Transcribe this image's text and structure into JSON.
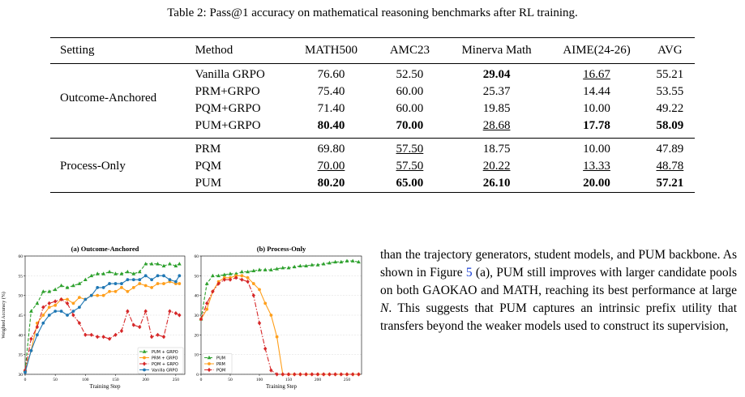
{
  "caption": "Table 2: Pass@1 accuracy on mathematical reasoning benchmarks after RL training.",
  "table": {
    "headers": [
      "Setting",
      "Method",
      "MATH500",
      "AMC23",
      "Minerva Math",
      "AIME(24-26)",
      "AVG"
    ],
    "rows": [
      {
        "setting": "",
        "method": "Vanilla GRPO",
        "math500": "76.60",
        "amc23": "52.50",
        "minerva": "29.04",
        "aime": "16.67",
        "avg": "55.21"
      },
      {
        "setting": "Outcome-Anchored",
        "method": "PRM+GRPO",
        "math500": "75.40",
        "amc23": "60.00",
        "minerva": "25.37",
        "aime": "14.44",
        "avg": "53.55"
      },
      {
        "setting": "",
        "method": "PQM+GRPO",
        "math500": "71.40",
        "amc23": "60.00",
        "minerva": "19.85",
        "aime": "10.00",
        "avg": "49.22"
      },
      {
        "setting": "",
        "method": "PUM+GRPO",
        "math500": "80.40",
        "amc23": "70.00",
        "minerva": "28.68",
        "aime": "17.78",
        "avg": "58.09"
      },
      {
        "setting": "",
        "method": "PRM",
        "math500": "69.80",
        "amc23": "57.50",
        "minerva": "18.75",
        "aime": "10.00",
        "avg": "47.89"
      },
      {
        "setting": "Process-Only",
        "method": "PQM",
        "math500": "70.00",
        "amc23": "57.50",
        "minerva": "20.22",
        "aime": "13.33",
        "avg": "48.78"
      },
      {
        "setting": "",
        "method": "PUM",
        "math500": "80.20",
        "amc23": "65.00",
        "minerva": "26.10",
        "aime": "20.00",
        "avg": "57.21"
      }
    ]
  },
  "chart_data": [
    {
      "type": "line",
      "title": "(a) Outcome-Anchored",
      "xlabel": "Training Step",
      "ylabel": "Weighted Accuracy (%)",
      "xlim": [
        0,
        265
      ],
      "ylim": [
        30,
        60
      ],
      "xticks": [
        0,
        50,
        100,
        150,
        200,
        250
      ],
      "yticks": [
        30,
        35,
        40,
        45,
        50,
        55,
        60
      ],
      "grid": true,
      "legend_position": "bottom-right",
      "series": [
        {
          "name": "PUM + GRPO",
          "color": "#2ca02c",
          "dash": "4,2",
          "marker": "triangle",
          "x": [
            0,
            10,
            20,
            30,
            40,
            50,
            60,
            70,
            80,
            90,
            100,
            110,
            120,
            130,
            140,
            150,
            160,
            170,
            180,
            190,
            200,
            210,
            220,
            230,
            240,
            250,
            256
          ],
          "y": [
            31,
            46,
            48,
            51,
            51,
            51.5,
            52.5,
            52,
            52.5,
            53,
            54,
            55,
            55.5,
            55.5,
            56,
            55.5,
            55.5,
            56,
            55.5,
            56,
            58,
            58,
            58,
            57.5,
            58,
            57.5,
            58
          ]
        },
        {
          "name": "PRM + GRPO",
          "color": "#ff9f1c",
          "dash": "",
          "marker": "circle",
          "x": [
            0,
            10,
            20,
            30,
            40,
            50,
            60,
            70,
            80,
            90,
            100,
            110,
            120,
            130,
            140,
            150,
            160,
            170,
            180,
            190,
            200,
            210,
            220,
            230,
            240,
            250,
            256
          ],
          "y": [
            31,
            36,
            43,
            45,
            47,
            47.5,
            49,
            49,
            48,
            49.5,
            49,
            50,
            50,
            50,
            51,
            51,
            52,
            51,
            52,
            53,
            52.5,
            52,
            53,
            53,
            53.5,
            53,
            53
          ]
        },
        {
          "name": "PQM + GRPO",
          "color": "#d62728",
          "dash": "6,2,1.5,2",
          "marker": "diamond",
          "x": [
            0,
            10,
            20,
            30,
            40,
            50,
            60,
            70,
            80,
            90,
            100,
            110,
            120,
            130,
            140,
            150,
            160,
            170,
            180,
            190,
            200,
            210,
            220,
            230,
            240,
            250,
            256
          ],
          "y": [
            31,
            39,
            42,
            47,
            48,
            48.5,
            49,
            48,
            45,
            43,
            40,
            40,
            39.5,
            39.5,
            39,
            40,
            41,
            46,
            42.5,
            42,
            46,
            39.5,
            40,
            39.5,
            46,
            45.5,
            45
          ]
        },
        {
          "name": "Vanilla GRPO",
          "color": "#1f77b4",
          "dash": "",
          "marker": "circle",
          "x": [
            0,
            10,
            20,
            30,
            40,
            50,
            60,
            70,
            80,
            90,
            100,
            110,
            120,
            130,
            140,
            150,
            160,
            170,
            180,
            190,
            200,
            210,
            220,
            230,
            240,
            250,
            256
          ],
          "y": [
            30.5,
            36,
            40,
            43,
            45,
            46,
            46,
            45,
            46,
            47,
            49,
            50,
            52,
            52,
            53,
            53,
            53,
            54,
            54,
            54,
            55,
            54,
            55,
            55,
            54,
            53.5,
            55
          ]
        }
      ]
    },
    {
      "type": "line",
      "title": "(b) Process-Only",
      "xlabel": "Training Step",
      "xlim": [
        0,
        275
      ],
      "ylim": [
        0,
        60
      ],
      "xticks": [
        0,
        50,
        100,
        150,
        200,
        250
      ],
      "yticks": [
        0,
        10,
        20,
        30,
        40,
        50,
        60
      ],
      "grid": true,
      "legend_position": "bottom-left",
      "series": [
        {
          "name": "PUM",
          "color": "#2ca02c",
          "dash": "4,2",
          "marker": "triangle",
          "x": [
            0,
            10,
            20,
            30,
            40,
            50,
            60,
            70,
            80,
            90,
            100,
            110,
            120,
            130,
            140,
            150,
            160,
            170,
            180,
            190,
            200,
            210,
            220,
            230,
            240,
            250,
            260,
            270
          ],
          "y": [
            28,
            46,
            50,
            50,
            50.5,
            51,
            51,
            52,
            52,
            52.5,
            53,
            53,
            53,
            53.5,
            54,
            54,
            54.5,
            55,
            55,
            55.5,
            55.5,
            56,
            56.5,
            57,
            57,
            57.5,
            57.5,
            57
          ]
        },
        {
          "name": "PRM",
          "color": "#ff9f1c",
          "dash": "",
          "marker": "circle",
          "x": [
            0,
            10,
            20,
            30,
            40,
            50,
            60,
            70,
            80,
            90,
            100,
            110,
            120,
            130,
            140,
            150,
            160,
            170,
            180,
            190,
            200,
            210,
            220,
            230,
            240,
            250,
            260,
            270
          ],
          "y": [
            28,
            33,
            42,
            47,
            49,
            49,
            50,
            50,
            49,
            46,
            43,
            36,
            30,
            19,
            0,
            0,
            0,
            0,
            0,
            0,
            0,
            0,
            0,
            0,
            0,
            0,
            0,
            0
          ]
        },
        {
          "name": "PQM",
          "color": "#d62728",
          "dash": "6,2,1.5,2",
          "marker": "diamond",
          "x": [
            0,
            10,
            20,
            30,
            40,
            50,
            60,
            70,
            80,
            90,
            100,
            110,
            120,
            130,
            140,
            150,
            160,
            170,
            180,
            190,
            200,
            210,
            220,
            230,
            240,
            250,
            260,
            270
          ],
          "y": [
            28,
            36,
            42,
            46,
            48,
            48,
            49,
            48,
            47,
            40,
            26,
            13,
            2,
            0,
            0,
            0,
            0,
            0,
            0,
            0,
            0,
            0,
            0,
            0,
            0,
            0,
            0,
            0
          ]
        }
      ]
    }
  ],
  "body": {
    "text_before": "than the trajectory generators, student models, and PUM backbone. As shown in Figure ",
    "ref": "5",
    "text_middle": " (a), PUM still improves with larger candidate pools on both GAOKAO and MATH, reaching its best performance at large ",
    "math": "N",
    "text_after": ". This suggests that PUM captures an intrinsic prefix utility that transfers beyond the weaker models used to construct its supervision,"
  }
}
